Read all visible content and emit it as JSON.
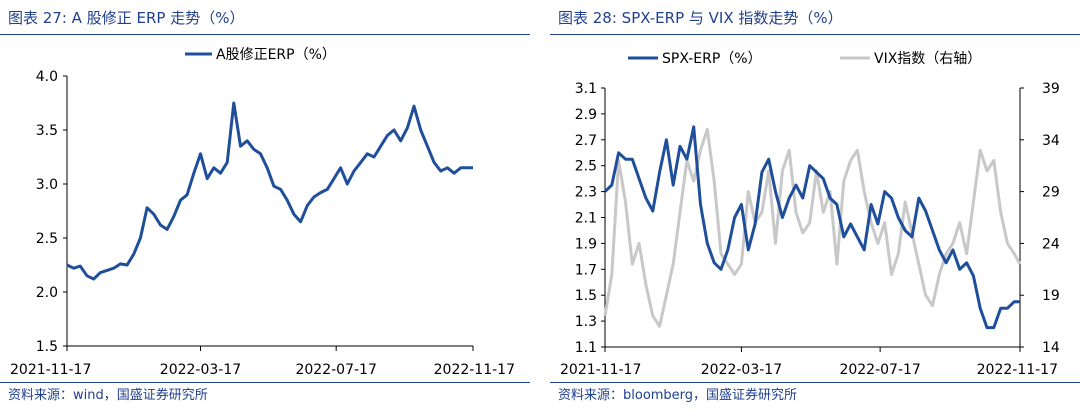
{
  "panels": {
    "left": {
      "fig_title": "图表 27:  A 股修正 ERP 走势（%）",
      "source": "资料来源：wind，国盛证券研究所"
    },
    "right": {
      "fig_title": "图表 28:  SPX-ERP 与 VIX 指数走势（%）",
      "source": "资料来源：bloomberg，国盛证券研究所"
    }
  },
  "chart_data": [
    {
      "type": "line",
      "title": "A股修正ERP（%）",
      "xlabel": "",
      "ylabel": "",
      "ylim": [
        1.5,
        4.0
      ],
      "yticks": [
        "1.5",
        "2.0",
        "2.5",
        "3.0",
        "3.5",
        "4.0"
      ],
      "x_tick_labels": [
        "2021-11-17",
        "2022-03-17",
        "2022-07-17",
        "2022-11-17"
      ],
      "x_tick_positions": [
        0,
        120,
        242,
        365
      ],
      "legend": "top-center",
      "color": "#1f4e9b",
      "series": [
        {
          "name": "A股修正ERP（%）",
          "x": [
            0,
            6,
            12,
            18,
            24,
            30,
            36,
            42,
            48,
            54,
            60,
            66,
            72,
            78,
            84,
            90,
            96,
            102,
            108,
            114,
            120,
            126,
            132,
            138,
            144,
            150,
            156,
            162,
            168,
            174,
            180,
            186,
            192,
            198,
            204,
            210,
            216,
            222,
            228,
            234,
            240,
            246,
            252,
            258,
            264,
            270,
            276,
            282,
            288,
            294,
            300,
            306,
            312,
            318,
            324,
            330,
            336,
            342,
            348,
            354,
            360,
            365
          ],
          "values": [
            2.25,
            2.22,
            2.24,
            2.15,
            2.12,
            2.18,
            2.2,
            2.22,
            2.26,
            2.25,
            2.35,
            2.5,
            2.78,
            2.72,
            2.62,
            2.58,
            2.7,
            2.85,
            2.9,
            3.1,
            3.28,
            3.05,
            3.15,
            3.1,
            3.2,
            3.75,
            3.35,
            3.4,
            3.32,
            3.28,
            3.15,
            2.98,
            2.95,
            2.85,
            2.72,
            2.65,
            2.8,
            2.88,
            2.92,
            2.95,
            3.05,
            3.15,
            3.0,
            3.12,
            3.2,
            3.28,
            3.25,
            3.35,
            3.45,
            3.5,
            3.4,
            3.52,
            3.72,
            3.5,
            3.35,
            3.2,
            3.12,
            3.15,
            3.1,
            3.15,
            3.15,
            3.15
          ]
        }
      ]
    },
    {
      "type": "line",
      "title": "",
      "xlabel": "",
      "ylabel": "",
      "ylim": [
        1.1,
        3.1
      ],
      "yticks": [
        "1.1",
        "1.3",
        "1.5",
        "1.7",
        "1.9",
        "2.1",
        "2.3",
        "2.5",
        "2.7",
        "2.9",
        "3.1"
      ],
      "ylim_right": [
        14,
        39
      ],
      "yticks_right": [
        "14",
        "19",
        "24",
        "29",
        "34",
        "39"
      ],
      "x_tick_labels": [
        "2021-11-17",
        "2022-03-17",
        "2022-07-17",
        "2022-11-17"
      ],
      "x_tick_positions": [
        0,
        120,
        242,
        365
      ],
      "legend": "top",
      "series": [
        {
          "name": "SPX-ERP（%）",
          "axis": "left",
          "color": "#1f4e9b",
          "x": [
            0,
            6,
            12,
            18,
            24,
            30,
            36,
            42,
            48,
            54,
            60,
            66,
            72,
            78,
            84,
            90,
            96,
            102,
            108,
            114,
            120,
            126,
            132,
            138,
            144,
            150,
            156,
            162,
            168,
            174,
            180,
            186,
            192,
            198,
            204,
            210,
            216,
            222,
            228,
            234,
            240,
            246,
            252,
            258,
            264,
            270,
            276,
            282,
            288,
            294,
            300,
            306,
            312,
            318,
            324,
            330,
            336,
            342,
            348,
            354,
            360,
            365
          ],
          "values": [
            2.3,
            2.35,
            2.6,
            2.55,
            2.55,
            2.4,
            2.25,
            2.15,
            2.45,
            2.7,
            2.35,
            2.65,
            2.55,
            2.8,
            2.2,
            1.9,
            1.75,
            1.7,
            1.85,
            2.1,
            2.2,
            1.85,
            2.05,
            2.45,
            2.55,
            2.3,
            2.1,
            2.25,
            2.35,
            2.25,
            2.5,
            2.45,
            2.4,
            2.25,
            2.2,
            1.95,
            2.05,
            1.95,
            1.85,
            2.2,
            2.05,
            2.3,
            2.25,
            2.1,
            2.0,
            1.95,
            2.25,
            2.15,
            2.0,
            1.85,
            1.75,
            1.85,
            1.7,
            1.75,
            1.65,
            1.4,
            1.25,
            1.25,
            1.4,
            1.4,
            1.45,
            1.45
          ]
        },
        {
          "name": "VIX指数（右轴）",
          "axis": "right",
          "color": "#c8c8c8",
          "x": [
            0,
            6,
            12,
            18,
            24,
            30,
            36,
            42,
            48,
            54,
            60,
            66,
            72,
            78,
            84,
            90,
            96,
            102,
            108,
            114,
            120,
            126,
            132,
            138,
            144,
            150,
            156,
            162,
            168,
            174,
            180,
            186,
            192,
            198,
            204,
            210,
            216,
            222,
            228,
            234,
            240,
            246,
            252,
            258,
            264,
            270,
            276,
            282,
            288,
            294,
            300,
            306,
            312,
            318,
            324,
            330,
            336,
            342,
            348,
            354,
            360,
            365
          ],
          "values": [
            17,
            21,
            32,
            28,
            22,
            24,
            20,
            17,
            16,
            19,
            22,
            27,
            32,
            30,
            33,
            35,
            30,
            23,
            22,
            21,
            22,
            29,
            26,
            27,
            31,
            24,
            31,
            33,
            27,
            25,
            26,
            31,
            27,
            29,
            22,
            30,
            32,
            33,
            29,
            26,
            24,
            26,
            21,
            23,
            28,
            25,
            22,
            19,
            18,
            21,
            23,
            24,
            26,
            23,
            28,
            33,
            31,
            32,
            27,
            24,
            23,
            22
          ]
        }
      ]
    }
  ]
}
